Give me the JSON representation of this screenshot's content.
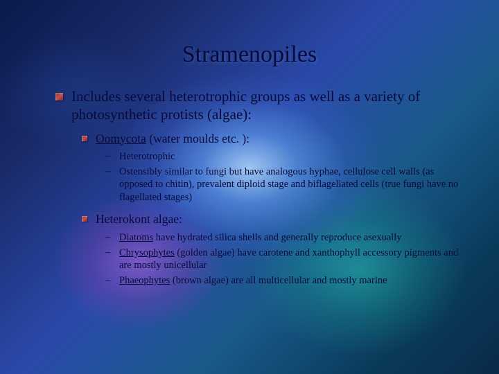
{
  "slide": {
    "title": "Stramenopiles",
    "background_colors": {
      "base_gradient_start": "#0a1a4a",
      "base_gradient_mid": "#2a4aaa",
      "base_gradient_end": "#0a2a4a",
      "glow_center": "#b4dcff",
      "glow_magenta": "#c864dc",
      "glow_teal": "#28c8b4"
    },
    "text_color": "#0a0a3a",
    "bullet_marker_color": "#7a2a2a",
    "title_fontsize": 34,
    "l1_fontsize": 21,
    "l2_fontsize": 17.5,
    "l3_fontsize": 14.5,
    "l1": {
      "text": "Includes several heterotrophic groups as well as a variety of photosynthetic protists (algae):"
    },
    "l2a": {
      "term": "Oomycota",
      "rest": " (water moulds etc. ):"
    },
    "l2a_sub1": "Heterotrophic",
    "l2a_sub2": "Ostensibly similar to fungi but have analogous hyphae, cellulose cell walls (as opposed to chitin), prevalent diploid stage and biflagellated cells (true fungi have no flagellated stages)",
    "l2b": {
      "text": "Heterokont algae:"
    },
    "l2b_sub1_term": "Diatoms",
    "l2b_sub1_rest": " have hydrated silica shells and generally reproduce asexually",
    "l2b_sub2_term": "Chrysophytes",
    "l2b_sub2_rest": " (golden algae) have carotene and xanthophyll accessory pigments and are mostly unicellular",
    "l2b_sub3_term": "Phaeophytes",
    "l2b_sub3_rest": " (brown algae) are all multicellular and mostly marine",
    "dash": "–"
  }
}
